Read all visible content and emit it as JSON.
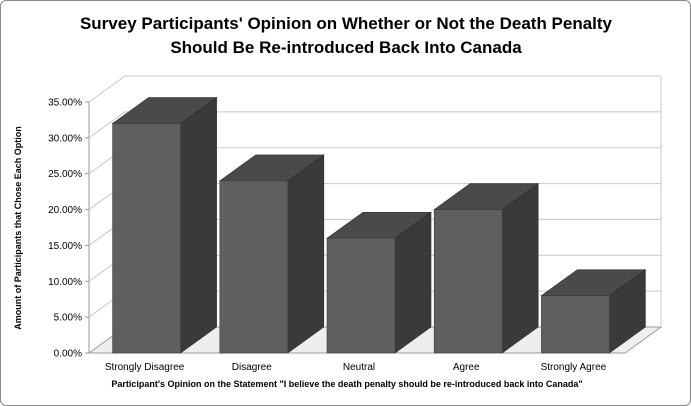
{
  "chart_data": {
    "type": "bar",
    "title_lines": [
      "Survey Participants' Opinion on Whether or Not the Death Penalty",
      "Should Be Re-introduced Back Into Canada"
    ],
    "xlabel": "Participant's Opinion on the Statement \"I believe the death penalty should be re-introduced back into Canada\"",
    "ylabel": "Amount of Participants that Chose Each Option",
    "categories": [
      "Strongly Disagree",
      "Disagree",
      "Neutral",
      "Agree",
      "Strongly Agree"
    ],
    "values": [
      0.32,
      0.24,
      0.16,
      0.2,
      0.08
    ],
    "ylim": [
      0,
      0.35
    ],
    "yticks": [
      {
        "value": 0.0,
        "label": "0.00%"
      },
      {
        "value": 0.05,
        "label": "5.00%"
      },
      {
        "value": 0.1,
        "label": "10.00%"
      },
      {
        "value": 0.15,
        "label": "15.00%"
      },
      {
        "value": 0.2,
        "label": "20.00%"
      },
      {
        "value": 0.25,
        "label": "25.00%"
      },
      {
        "value": 0.3,
        "label": "30.00%"
      },
      {
        "value": 0.35,
        "label": "35.00%"
      }
    ],
    "grid": true,
    "legend": "none",
    "colors": {
      "bar_front": "#5f5f5f",
      "bar_side": "#3a3a3a",
      "bar_top": "#4a4a4a",
      "grid": "#c8c8c8"
    }
  }
}
